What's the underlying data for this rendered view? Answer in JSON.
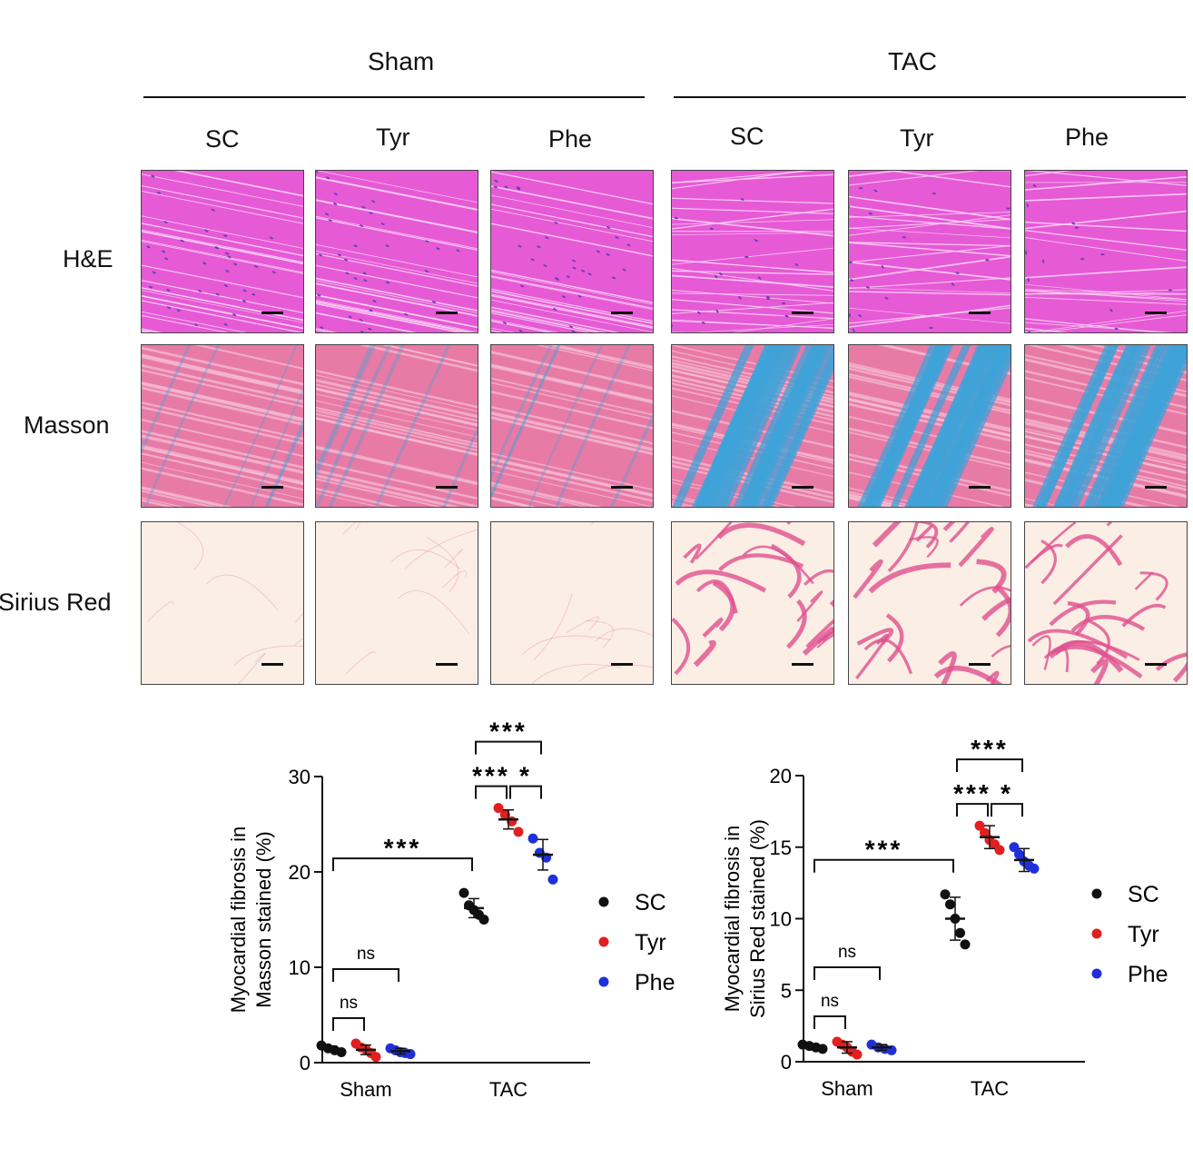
{
  "groups": [
    "Sham",
    "TAC"
  ],
  "treatments": [
    "SC",
    "Tyr",
    "Phe",
    "SC",
    "Tyr",
    "Phe"
  ],
  "stains": [
    "H&E",
    "Masson",
    "Sirius Red"
  ],
  "colors": {
    "he": "#e65ad6",
    "he_nuclei": "#6a3fb5",
    "masson_red": "#e87aa6",
    "masson_blue": "#3fa3d8",
    "sirius_bg": "#fbeee4",
    "sirius_fiber": "#e0508f",
    "SC": "#111111",
    "Tyr": "#e02020",
    "Phe": "#2030d8"
  },
  "chart_data": [
    {
      "type": "scatter",
      "ylabel_lines": [
        "Myocardial fibrosis in",
        "Masson stained (%)"
      ],
      "categories": [
        "Sham",
        "TAC"
      ],
      "ylim": [
        0,
        30
      ],
      "yticks": [
        "0",
        "10",
        "20",
        "30"
      ],
      "legend": [
        "SC",
        "Tyr",
        "Phe"
      ],
      "series": [
        {
          "name": "SC",
          "points": [
            [
              1.8,
              1.5,
              1.3,
              1.1
            ],
            [
              17.8,
              16.5,
              16.0,
              15.5,
              15.0
            ]
          ],
          "means": [
            1.45,
            16.2
          ],
          "sd": [
            0.3,
            1.0
          ]
        },
        {
          "name": "Tyr",
          "points": [
            [
              2.0,
              1.6,
              1.4,
              1.0,
              0.6
            ],
            [
              26.7,
              26.0,
              25.3,
              24.2
            ]
          ],
          "means": [
            1.35,
            25.5
          ],
          "sd": [
            0.5,
            1.0
          ]
        },
        {
          "name": "Phe",
          "points": [
            [
              1.5,
              1.3,
              1.1,
              1.0,
              0.9
            ],
            [
              23.5,
              22.0,
              21.5,
              19.2
            ]
          ],
          "means": [
            1.2,
            21.8
          ],
          "sd": [
            0.3,
            1.6
          ]
        }
      ],
      "brackets": [
        {
          "from": [
            0,
            0
          ],
          "to": [
            0,
            1
          ],
          "label": "ns"
        },
        {
          "from": [
            0,
            0
          ],
          "to": [
            0,
            2
          ],
          "label": "ns"
        },
        {
          "from": [
            0,
            0
          ],
          "to": [
            1,
            0
          ],
          "label": "***"
        },
        {
          "from": [
            1,
            0
          ],
          "to": [
            1,
            1
          ],
          "label": "***"
        },
        {
          "from": [
            1,
            1
          ],
          "to": [
            1,
            2
          ],
          "label": "*"
        },
        {
          "from": [
            1,
            0
          ],
          "to": [
            1,
            2
          ],
          "label": "***"
        }
      ]
    },
    {
      "type": "scatter",
      "ylabel_lines": [
        "Myocardial fibrosis in",
        "Sirius Red stained (%)"
      ],
      "categories": [
        "Sham",
        "TAC"
      ],
      "ylim": [
        0,
        20
      ],
      "yticks": [
        "0",
        "5",
        "10",
        "15",
        "20"
      ],
      "legend": [
        "SC",
        "Tyr",
        "Phe"
      ],
      "series": [
        {
          "name": "SC",
          "points": [
            [
              1.2,
              1.1,
              1.0,
              0.9
            ],
            [
              11.7,
              11.0,
              10.0,
              9.0,
              8.2
            ]
          ],
          "means": [
            1.05,
            10.0
          ],
          "sd": [
            0.15,
            1.5
          ]
        },
        {
          "name": "Tyr",
          "points": [
            [
              1.4,
              1.2,
              1.0,
              0.7,
              0.5
            ],
            [
              16.5,
              16.0,
              15.5,
              15.2,
              14.8
            ]
          ],
          "means": [
            1.0,
            15.7
          ],
          "sd": [
            0.4,
            0.8
          ]
        },
        {
          "name": "Phe",
          "points": [
            [
              1.2,
              1.0,
              0.9,
              0.8
            ],
            [
              15.0,
              14.5,
              14.0,
              13.7,
              13.5
            ]
          ],
          "means": [
            1.0,
            14.1
          ],
          "sd": [
            0.2,
            0.8
          ]
        }
      ],
      "brackets": [
        {
          "from": [
            0,
            0
          ],
          "to": [
            0,
            1
          ],
          "label": "ns"
        },
        {
          "from": [
            0,
            0
          ],
          "to": [
            0,
            2
          ],
          "label": "ns"
        },
        {
          "from": [
            0,
            0
          ],
          "to": [
            1,
            0
          ],
          "label": "***"
        },
        {
          "from": [
            1,
            0
          ],
          "to": [
            1,
            1
          ],
          "label": "***"
        },
        {
          "from": [
            1,
            1
          ],
          "to": [
            1,
            2
          ],
          "label": "*"
        },
        {
          "from": [
            1,
            0
          ],
          "to": [
            1,
            2
          ],
          "label": "***"
        }
      ]
    }
  ]
}
